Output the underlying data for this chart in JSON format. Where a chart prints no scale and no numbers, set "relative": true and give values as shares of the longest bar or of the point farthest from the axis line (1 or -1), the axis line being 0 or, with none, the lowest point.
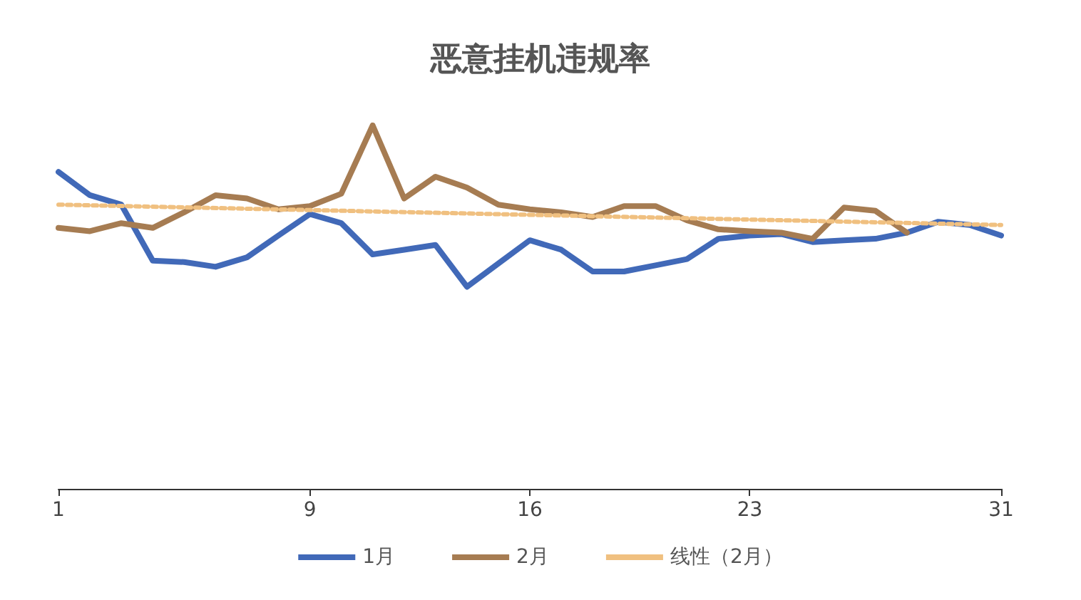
{
  "chart_data": {
    "type": "line",
    "title": "恶意挂机违规率",
    "relative": true,
    "legend": "bottom",
    "grid": false,
    "marker": "none",
    "categories": [
      "1",
      null,
      null,
      null,
      null,
      null,
      null,
      null,
      "9",
      null,
      null,
      null,
      null,
      null,
      null,
      "16",
      null,
      null,
      null,
      null,
      null,
      null,
      "23",
      null,
      null,
      null,
      null,
      null,
      null,
      null,
      "31"
    ],
    "series": [
      {
        "name": "1月",
        "color": "#4169b8",
        "values": [
          0.872,
          0.808,
          0.782,
          0.628,
          0.624,
          0.611,
          0.637,
          0.697,
          0.756,
          0.731,
          0.645,
          0.658,
          0.671,
          0.556,
          0.62,
          0.684,
          0.658,
          0.598,
          0.598,
          0.615,
          0.632,
          0.688,
          0.697,
          0.701,
          0.679,
          0.684,
          0.688,
          0.705,
          0.735,
          0.726,
          0.697
        ]
      },
      {
        "name": "2月",
        "color": "#a67c52",
        "values": [
          0.718,
          0.709,
          0.731,
          0.718,
          0.761,
          0.808,
          0.799,
          0.769,
          0.778,
          0.812,
          1,
          0.799,
          0.859,
          0.829,
          0.782,
          0.769,
          0.761,
          0.748,
          0.778,
          0.778,
          0.739,
          0.714,
          0.709,
          0.705,
          0.688,
          0.774,
          0.765,
          0.705,
          null,
          null,
          null
        ]
      },
      {
        "name": "线性（2月）",
        "color": "#f0c080",
        "line_style": "dotted",
        "x": [
          "1",
          "31"
        ],
        "values": [
          0.782,
          0.726
        ]
      }
    ]
  }
}
